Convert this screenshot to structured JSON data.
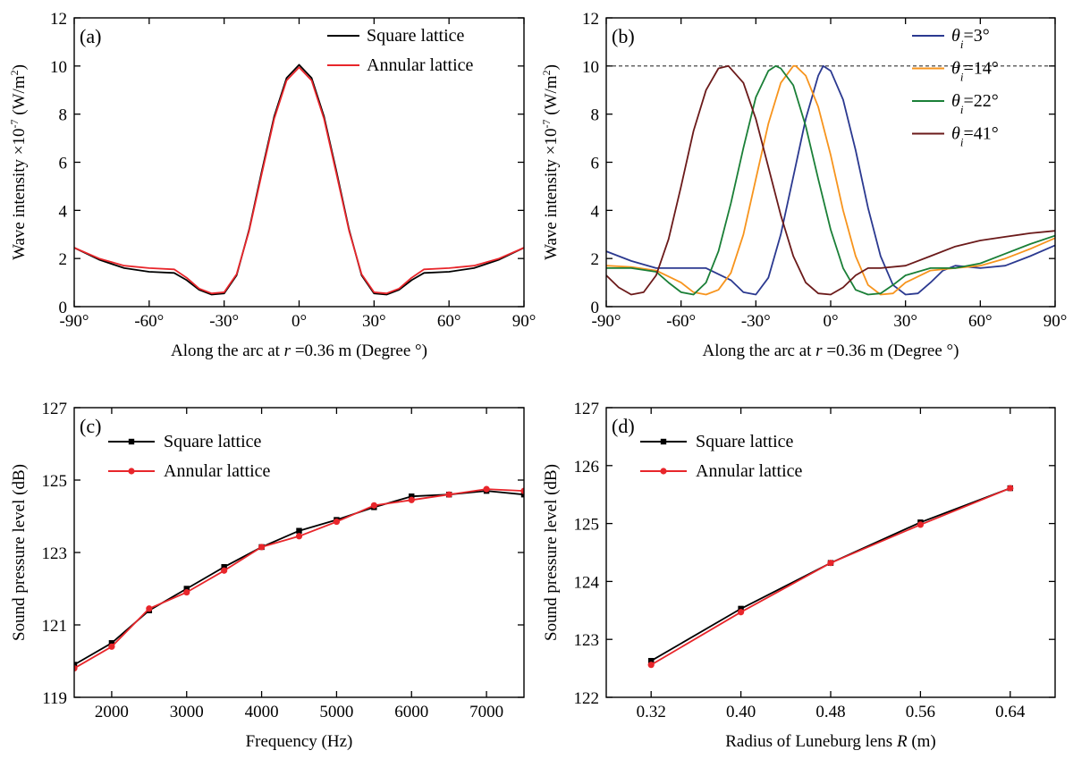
{
  "chart_data": [
    {
      "id": "a",
      "type": "line",
      "panel_label": "(a)",
      "xlabel_parts": [
        "Along the arc at ",
        "r",
        " =0.36 m (Degree °)"
      ],
      "ylabel_parts": [
        "Wave intensity ×10",
        "-7",
        " (W/m",
        "2",
        ")"
      ],
      "xlim": [
        -90,
        90
      ],
      "ylim": [
        0,
        12
      ],
      "xticks": [
        -90,
        -60,
        -30,
        0,
        30,
        60,
        90
      ],
      "xtick_labels": [
        "-90°",
        "-60°",
        "-30°",
        "0°",
        "30°",
        "60°",
        "90°"
      ],
      "yticks": [
        0,
        2,
        4,
        6,
        8,
        10,
        12
      ],
      "ytick_labels": [
        "0",
        "2",
        "4",
        "6",
        "8",
        "10",
        "12"
      ],
      "legend_position": "top-right",
      "series": [
        {
          "name": "Square lattice",
          "color": "#000000",
          "x": [
            -90,
            -80,
            -70,
            -60,
            -50,
            -45,
            -40,
            -35,
            -30,
            -25,
            -20,
            -15,
            -10,
            -5,
            0,
            5,
            10,
            15,
            20,
            25,
            30,
            35,
            40,
            45,
            50,
            60,
            70,
            80,
            90
          ],
          "y": [
            2.45,
            1.95,
            1.6,
            1.45,
            1.4,
            1.1,
            0.7,
            0.5,
            0.55,
            1.3,
            3.2,
            5.6,
            7.9,
            9.5,
            10.05,
            9.5,
            7.9,
            5.6,
            3.2,
            1.3,
            0.55,
            0.5,
            0.7,
            1.1,
            1.4,
            1.45,
            1.6,
            1.95,
            2.45
          ]
        },
        {
          "name": "Annular lattice",
          "color": "#e8262b",
          "x": [
            -90,
            -80,
            -70,
            -60,
            -50,
            -45,
            -40,
            -35,
            -30,
            -25,
            -20,
            -15,
            -10,
            -5,
            0,
            5,
            10,
            15,
            20,
            25,
            30,
            35,
            40,
            45,
            50,
            60,
            70,
            80,
            90
          ],
          "y": [
            2.45,
            2.0,
            1.7,
            1.6,
            1.55,
            1.2,
            0.75,
            0.55,
            0.6,
            1.35,
            3.15,
            5.5,
            7.8,
            9.4,
            9.95,
            9.4,
            7.8,
            5.5,
            3.15,
            1.35,
            0.6,
            0.55,
            0.75,
            1.2,
            1.55,
            1.6,
            1.7,
            2.0,
            2.45
          ]
        }
      ]
    },
    {
      "id": "b",
      "type": "line",
      "panel_label": "(b)",
      "xlabel_parts": [
        "Along the arc at ",
        "r",
        " =0.36 m (Degree °)"
      ],
      "ylabel_parts": [
        "Wave intensity ×10",
        "-7",
        " (W/m",
        "2",
        ")"
      ],
      "xlim": [
        -90,
        90
      ],
      "ylim": [
        0,
        12
      ],
      "xticks": [
        -90,
        -60,
        -30,
        0,
        30,
        60,
        90
      ],
      "xtick_labels": [
        "-90°",
        "-60°",
        "-30°",
        "0°",
        "30°",
        "60°",
        "90°"
      ],
      "yticks": [
        0,
        2,
        4,
        6,
        8,
        10,
        12
      ],
      "ytick_labels": [
        "0",
        "2",
        "4",
        "6",
        "8",
        "10",
        "12"
      ],
      "reference_line_y": 10,
      "legend_position": "top-right",
      "series": [
        {
          "name": "θi=3°",
          "legend_sym": "θ",
          "legend_sub": "i",
          "legend_rest": "=3°",
          "color": "#2b3990",
          "x": [
            -90,
            -80,
            -70,
            -60,
            -50,
            -40,
            -35,
            -30,
            -25,
            -20,
            -15,
            -10,
            -5,
            -3,
            0,
            5,
            10,
            15,
            20,
            25,
            30,
            35,
            40,
            45,
            50,
            60,
            70,
            80,
            90
          ],
          "y": [
            2.3,
            1.9,
            1.6,
            1.6,
            1.6,
            1.1,
            0.6,
            0.5,
            1.2,
            3.0,
            5.4,
            7.8,
            9.6,
            10.0,
            9.8,
            8.6,
            6.5,
            4.1,
            2.1,
            0.9,
            0.5,
            0.55,
            1.0,
            1.5,
            1.7,
            1.6,
            1.7,
            2.1,
            2.55
          ]
        },
        {
          "name": "θi=14°",
          "legend_sym": "θ",
          "legend_sub": "i",
          "legend_rest": "=14°",
          "color": "#f7941d",
          "x": [
            -90,
            -80,
            -70,
            -60,
            -55,
            -50,
            -45,
            -40,
            -35,
            -30,
            -25,
            -20,
            -15,
            -14,
            -10,
            -5,
            0,
            5,
            10,
            15,
            20,
            25,
            30,
            40,
            50,
            60,
            70,
            80,
            90
          ],
          "y": [
            1.7,
            1.65,
            1.5,
            1.0,
            0.6,
            0.5,
            0.7,
            1.4,
            3.0,
            5.3,
            7.6,
            9.3,
            10.0,
            10.0,
            9.6,
            8.3,
            6.3,
            4.0,
            2.1,
            0.9,
            0.5,
            0.55,
            1.0,
            1.5,
            1.6,
            1.7,
            2.0,
            2.4,
            2.85
          ]
        },
        {
          "name": "θi=22°",
          "legend_sym": "θ",
          "legend_sub": "i",
          "legend_rest": "=22°",
          "color": "#1a7f37",
          "x": [
            -90,
            -80,
            -70,
            -65,
            -60,
            -55,
            -50,
            -45,
            -40,
            -35,
            -30,
            -25,
            -22,
            -20,
            -15,
            -10,
            -5,
            0,
            5,
            10,
            15,
            20,
            25,
            30,
            40,
            50,
            60,
            70,
            80,
            90
          ],
          "y": [
            1.6,
            1.6,
            1.45,
            1.0,
            0.6,
            0.5,
            1.0,
            2.3,
            4.3,
            6.6,
            8.7,
            9.8,
            10.0,
            9.9,
            9.2,
            7.5,
            5.3,
            3.2,
            1.6,
            0.7,
            0.5,
            0.55,
            0.9,
            1.3,
            1.6,
            1.6,
            1.8,
            2.2,
            2.6,
            2.95
          ]
        },
        {
          "name": "θi=41°",
          "legend_sym": "θ",
          "legend_sub": "i",
          "legend_rest": "=41°",
          "color": "#6b1a1a",
          "x": [
            -90,
            -85,
            -80,
            -75,
            -70,
            -65,
            -60,
            -55,
            -50,
            -45,
            -41,
            -35,
            -30,
            -25,
            -20,
            -15,
            -10,
            -5,
            0,
            5,
            10,
            15,
            20,
            30,
            40,
            50,
            60,
            70,
            80,
            90
          ],
          "y": [
            1.3,
            0.8,
            0.5,
            0.6,
            1.3,
            2.8,
            5.0,
            7.3,
            9.0,
            9.9,
            10.0,
            9.3,
            7.8,
            5.8,
            3.8,
            2.1,
            1.0,
            0.55,
            0.5,
            0.8,
            1.3,
            1.6,
            1.6,
            1.7,
            2.1,
            2.5,
            2.75,
            2.9,
            3.05,
            3.15
          ]
        }
      ]
    },
    {
      "id": "c",
      "type": "line",
      "panel_label": "(c)",
      "xlabel_parts": [
        "Frequency (Hz)"
      ],
      "ylabel_parts": [
        "Sound pressure level (dB)"
      ],
      "xlim": [
        1500,
        7500
      ],
      "ylim": [
        119,
        127
      ],
      "xticks": [
        2000,
        3000,
        4000,
        5000,
        6000,
        7000
      ],
      "xtick_labels": [
        "2000",
        "3000",
        "4000",
        "5000",
        "6000",
        "7000"
      ],
      "yticks": [
        119,
        121,
        123,
        125,
        127
      ],
      "ytick_labels": [
        "119",
        "121",
        "123",
        "125",
        "127"
      ],
      "legend_position": "top-left",
      "series": [
        {
          "name": "Square lattice",
          "color": "#000000",
          "marker": "square",
          "x": [
            1500,
            2000,
            2500,
            3000,
            3500,
            4000,
            4500,
            5000,
            5500,
            6000,
            6500,
            7000,
            7500
          ],
          "y": [
            119.9,
            120.5,
            121.4,
            122.0,
            122.6,
            123.15,
            123.6,
            123.9,
            124.25,
            124.55,
            124.6,
            124.7,
            124.6
          ]
        },
        {
          "name": "Annular lattice",
          "color": "#e8262b",
          "marker": "circle",
          "x": [
            1500,
            2000,
            2500,
            3000,
            3500,
            4000,
            4500,
            5000,
            5500,
            6000,
            6500,
            7000,
            7500
          ],
          "y": [
            119.8,
            120.4,
            121.45,
            121.9,
            122.5,
            123.15,
            123.45,
            123.85,
            124.3,
            124.45,
            124.6,
            124.75,
            124.7
          ]
        }
      ]
    },
    {
      "id": "d",
      "type": "line",
      "panel_label": "(d)",
      "xlabel_parts": [
        "Radius of Luneburg lens ",
        "R",
        " (m)"
      ],
      "ylabel_parts": [
        "Sound pressure level (dB)"
      ],
      "xlim": [
        0.28,
        0.68
      ],
      "ylim": [
        122,
        127
      ],
      "xticks": [
        0.32,
        0.4,
        0.48,
        0.56,
        0.64
      ],
      "xtick_labels": [
        "0.32",
        "0.40",
        "0.48",
        "0.56",
        "0.64"
      ],
      "yticks": [
        122,
        123,
        124,
        125,
        126,
        127
      ],
      "ytick_labels": [
        "122",
        "123",
        "124",
        "125",
        "126",
        "127"
      ],
      "legend_position": "top-left",
      "series": [
        {
          "name": "Square lattice",
          "color": "#000000",
          "marker": "square",
          "x": [
            0.32,
            0.4,
            0.48,
            0.56,
            0.64
          ],
          "y": [
            122.63,
            123.53,
            124.32,
            125.02,
            125.61
          ]
        },
        {
          "name": "Annular lattice",
          "color": "#e8262b",
          "marker": "circle",
          "x": [
            0.32,
            0.4,
            0.48,
            0.56,
            0.64
          ],
          "y": [
            122.56,
            123.47,
            124.32,
            124.98,
            125.61
          ]
        }
      ]
    }
  ]
}
